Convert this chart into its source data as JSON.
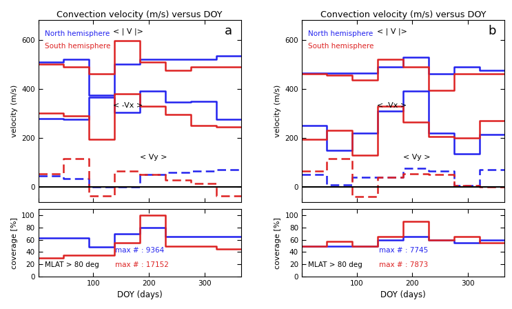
{
  "title": "Convection velocity (m/s) versus DOY",
  "xlabel": "DOY (days)",
  "ylabel_vel": "velocity (m/s)",
  "ylabel_cov": "coverage [%]",
  "panel_labels": [
    "a",
    "b"
  ],
  "north_color": "#2222ee",
  "south_color": "#dd2222",
  "doy_edges": [
    1,
    46,
    92,
    138,
    184,
    230,
    276,
    322,
    366
  ],
  "a_north_absv": [
    510,
    520,
    375,
    500,
    520,
    520,
    520,
    535
  ],
  "a_south_absv": [
    500,
    490,
    460,
    595,
    510,
    475,
    490,
    490
  ],
  "a_north_negvx": [
    280,
    275,
    365,
    305,
    390,
    345,
    350,
    275
  ],
  "a_south_negvx": [
    300,
    290,
    195,
    380,
    330,
    295,
    250,
    245
  ],
  "a_north_vy": [
    45,
    35,
    0,
    0,
    50,
    60,
    65,
    70
  ],
  "a_south_vy": [
    55,
    115,
    -35,
    65,
    50,
    30,
    15,
    -35
  ],
  "a_north_cov": [
    63,
    63,
    48,
    70,
    80,
    65,
    65,
    65
  ],
  "a_south_cov": [
    30,
    35,
    35,
    55,
    100,
    50,
    50,
    45
  ],
  "a_north_max": 9364,
  "a_south_max": 17152,
  "b_north_absv": [
    465,
    465,
    465,
    490,
    530,
    460,
    490,
    475
  ],
  "b_south_absv": [
    460,
    455,
    435,
    520,
    490,
    395,
    460,
    460
  ],
  "b_north_negvx": [
    250,
    150,
    220,
    310,
    390,
    220,
    135,
    215
  ],
  "b_south_negvx": [
    195,
    230,
    130,
    330,
    265,
    205,
    200,
    270
  ],
  "b_north_vy": [
    50,
    10,
    40,
    40,
    75,
    65,
    5,
    70
  ],
  "b_south_vy": [
    65,
    115,
    -40,
    40,
    55,
    50,
    5,
    0
  ],
  "b_north_cov": [
    50,
    50,
    50,
    60,
    65,
    60,
    55,
    60
  ],
  "b_south_cov": [
    50,
    58,
    50,
    65,
    90,
    60,
    65,
    55
  ],
  "b_north_max": 7745,
  "b_south_max": 7873
}
